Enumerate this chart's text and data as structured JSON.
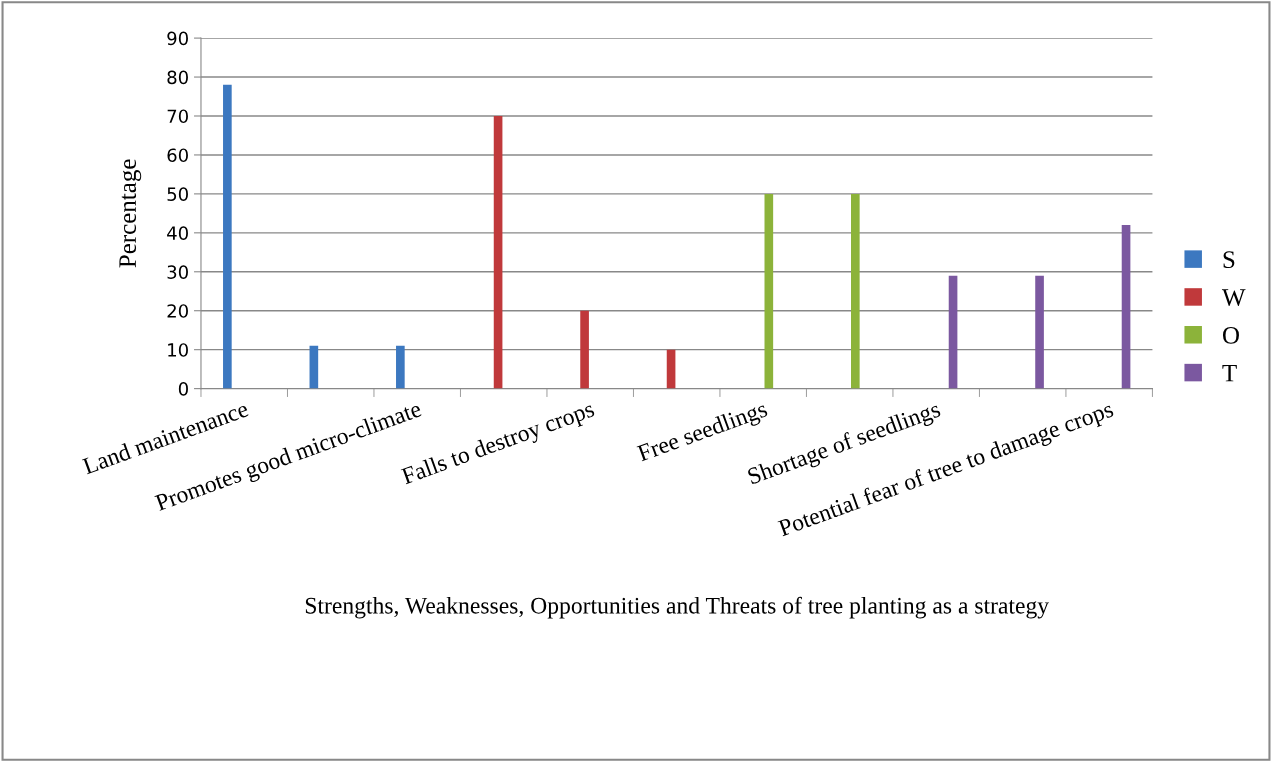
{
  "chart_data": {
    "type": "bar",
    "xlabel": "Strengths, Weaknesses, Opportunities and Threats of tree planting as a strategy",
    "ylabel": "Percentage",
    "categories": [
      "Land maintenance",
      null,
      "Promotes good micro-climate",
      null,
      "Falls to destroy crops",
      null,
      "Free seedlings",
      null,
      "Shortage of seedlings",
      null,
      "Potential fear of tree to damage crops"
    ],
    "series": [
      {
        "name": "S",
        "color": "#3c78c0",
        "values": [
          78,
          11,
          11,
          null,
          null,
          null,
          null,
          null,
          null,
          null,
          null
        ]
      },
      {
        "name": "W",
        "color": "#c0393b",
        "values": [
          null,
          null,
          null,
          70,
          20,
          10,
          null,
          null,
          null,
          null,
          null
        ]
      },
      {
        "name": "O",
        "color": "#8cb33a",
        "values": [
          null,
          null,
          null,
          null,
          null,
          null,
          50,
          50,
          null,
          null,
          null
        ]
      },
      {
        "name": "T",
        "color": "#7b58a0",
        "values": [
          null,
          null,
          null,
          null,
          null,
          null,
          null,
          null,
          29,
          29,
          42
        ]
      }
    ],
    "ylim": [
      0,
      90
    ],
    "yticks": [
      0,
      10,
      20,
      30,
      40,
      50,
      60,
      70,
      80,
      90
    ],
    "grid": "y",
    "legend": "right"
  }
}
